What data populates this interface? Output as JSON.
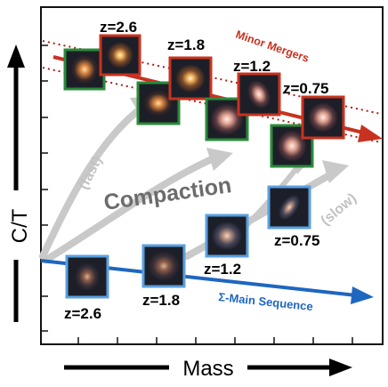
{
  "axes": {
    "y_label": "C/T",
    "x_label": "Mass"
  },
  "labels": {
    "minor_mergers": "Minor Mergers",
    "main_sequence": "Σ-Main Sequence",
    "compaction": "Compaction",
    "fast": "(fast)",
    "slow": "(slow)"
  },
  "compact_track": {
    "redshifts": [
      "z=2.6",
      "z=1.8",
      "z=1.2",
      "z=0.75"
    ]
  },
  "main_sequence_track": {
    "redshifts": [
      "z=2.6",
      "z=1.8",
      "z=1.2",
      "z=0.75"
    ]
  },
  "colors": {
    "minor_mergers": "#c83220",
    "main_sequence": "#1f66c0",
    "compaction_arrows": "#c9c9c9",
    "compaction_text": "#6c6c6c",
    "star_forming_frame": "#2a8a3a",
    "quenched_frame": "#c8321f",
    "main_sequence_frame": "#5aa0e0"
  }
}
